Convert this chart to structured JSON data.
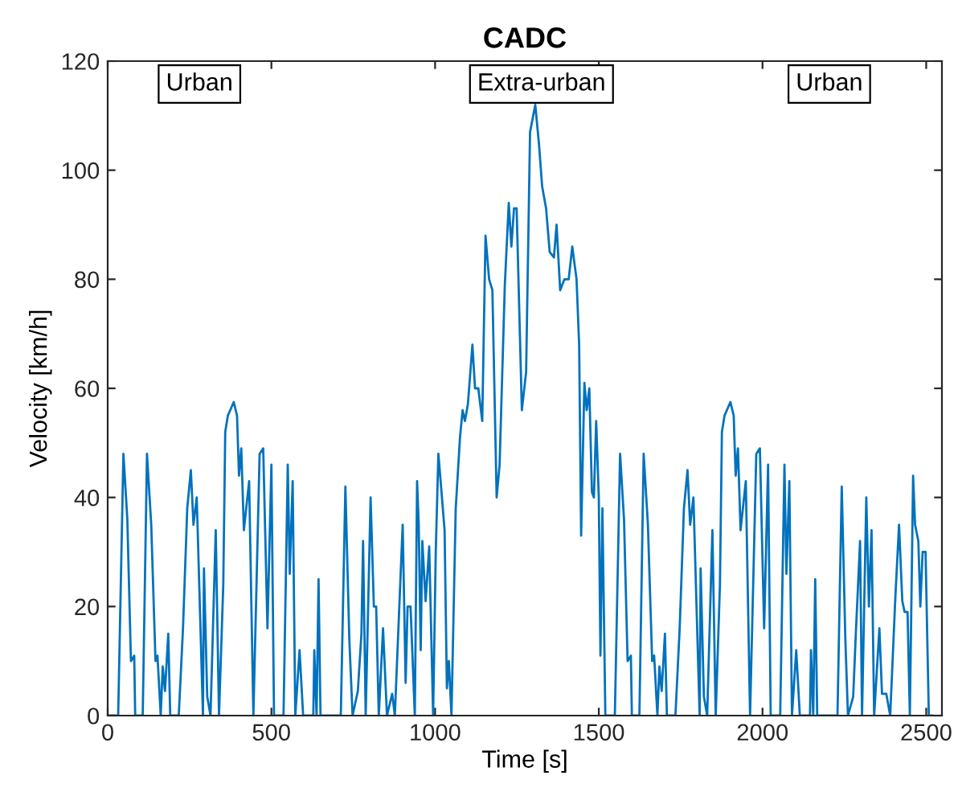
{
  "chart_data": {
    "type": "line",
    "title": "CADC",
    "xlabel": "Time [s]",
    "ylabel": "Velocity [km/h]",
    "annotations": [
      "Urban",
      "Extra-urban",
      "Urban"
    ],
    "xlim": [
      0,
      2548
    ],
    "xticks": [
      0,
      500,
      1000,
      1500,
      2000,
      2500
    ],
    "ylim": [
      0,
      120
    ],
    "yticks": [
      0,
      20,
      40,
      60,
      80,
      100,
      120
    ],
    "grid": false,
    "legend": false,
    "marker": "none",
    "line_style": "solid",
    "series": [
      {
        "color": "#0072bd",
        "x": [
          0,
          32,
          48,
          60,
          71,
          81,
          84,
          107,
          120,
          133,
          146,
          152,
          162,
          168,
          175,
          185,
          191,
          217,
          230,
          243,
          254,
          262,
          272,
          291,
          294,
          304,
          314,
          330,
          340,
          353,
          359,
          367,
          385,
          395,
          401,
          408,
          416,
          432,
          445,
          464,
          475,
          488,
          500,
          508,
          537,
          550,
          556,
          565,
          573,
          586,
          597,
          628,
          631,
          638,
          644,
          650,
          712,
          726,
          738,
          748,
          764,
          775,
          780,
          788,
          803,
          813,
          820,
          828,
          841,
          853,
          869,
          877,
          901,
          910,
          916,
          925,
          938,
          945,
          950,
          956,
          961,
          971,
          982,
          994,
          1002,
          1010,
          1029,
          1036,
          1042,
          1050,
          1063,
          1076,
          1084,
          1091,
          1100,
          1114,
          1122,
          1132,
          1144,
          1154,
          1165,
          1175,
          1188,
          1197,
          1213,
          1225,
          1233,
          1241,
          1249,
          1265,
          1278,
          1290,
          1306,
          1317,
          1327,
          1339,
          1350,
          1363,
          1371,
          1382,
          1395,
          1408,
          1419,
          1432,
          1440,
          1446,
          1456,
          1463,
          1471,
          1479,
          1485,
          1492,
          1500,
          1505,
          1511,
          1520,
          1549,
          1565,
          1577,
          1588,
          1598,
          1601,
          1624,
          1637,
          1650,
          1663,
          1669,
          1679,
          1685,
          1692,
          1702,
          1708,
          1734,
          1747,
          1760,
          1771,
          1779,
          1789,
          1808,
          1811,
          1821,
          1831,
          1847,
          1857,
          1870,
          1876,
          1884,
          1902,
          1912,
          1918,
          1925,
          1933,
          1949,
          1962,
          1981,
          1992,
          2005,
          2017,
          2025,
          2054,
          2067,
          2073,
          2082,
          2090,
          2103,
          2114,
          2145,
          2148,
          2155,
          2161,
          2167,
          2229,
          2242,
          2253,
          2261,
          2277,
          2285,
          2298,
          2304,
          2317,
          2325,
          2333,
          2341,
          2357,
          2365,
          2378,
          2390,
          2406,
          2417,
          2427,
          2434,
          2443,
          2450,
          2460,
          2466,
          2476,
          2482,
          2489,
          2498,
          2508,
          2519
        ],
        "values": [
          0,
          0,
          48,
          36,
          10,
          11,
          0,
          0,
          48,
          35,
          10,
          11,
          0,
          9,
          4.5,
          15,
          0,
          0,
          16,
          38,
          45,
          35,
          40,
          0,
          27,
          3.5,
          0,
          34,
          0,
          24,
          52,
          55,
          57.5,
          55,
          44,
          49,
          34,
          43,
          0,
          48,
          49,
          16,
          46,
          0,
          0,
          46,
          26,
          43,
          0,
          12,
          0,
          0,
          12,
          0,
          25,
          0,
          0,
          42,
          14,
          0,
          4.5,
          15,
          32,
          0,
          40,
          20,
          20,
          0,
          16,
          0,
          4,
          0,
          35,
          6,
          20,
          20,
          0,
          43,
          35,
          12,
          32,
          21,
          31,
          0,
          30,
          48,
          34,
          5,
          10,
          0,
          38,
          51,
          56,
          54,
          57,
          68,
          60,
          60,
          54,
          88,
          80,
          78,
          40,
          46,
          79,
          94,
          86,
          93,
          93,
          56,
          63,
          107,
          112,
          105,
          97,
          93,
          85,
          84,
          90,
          78,
          80,
          80,
          86,
          80,
          68,
          33,
          61,
          56,
          60,
          41,
          40,
          54,
          40,
          11,
          38,
          0,
          0,
          48,
          36,
          10,
          11,
          0,
          0,
          48,
          35,
          10,
          11,
          0,
          9,
          4.5,
          15,
          0,
          0,
          16,
          38,
          45,
          35,
          40,
          0,
          27,
          3.5,
          0,
          34,
          0,
          24,
          52,
          55,
          57.5,
          55,
          44,
          49,
          34,
          43,
          0,
          48,
          49,
          16,
          46,
          0,
          0,
          46,
          26,
          43,
          0,
          12,
          0,
          0,
          12,
          0,
          25,
          0,
          0,
          42,
          14,
          0,
          3.5,
          15,
          32,
          0,
          40,
          20,
          34,
          0,
          16,
          4,
          4,
          0,
          22,
          35,
          21,
          19,
          19,
          0,
          44,
          35,
          32,
          20,
          30,
          30,
          0,
          0
        ]
      }
    ]
  }
}
